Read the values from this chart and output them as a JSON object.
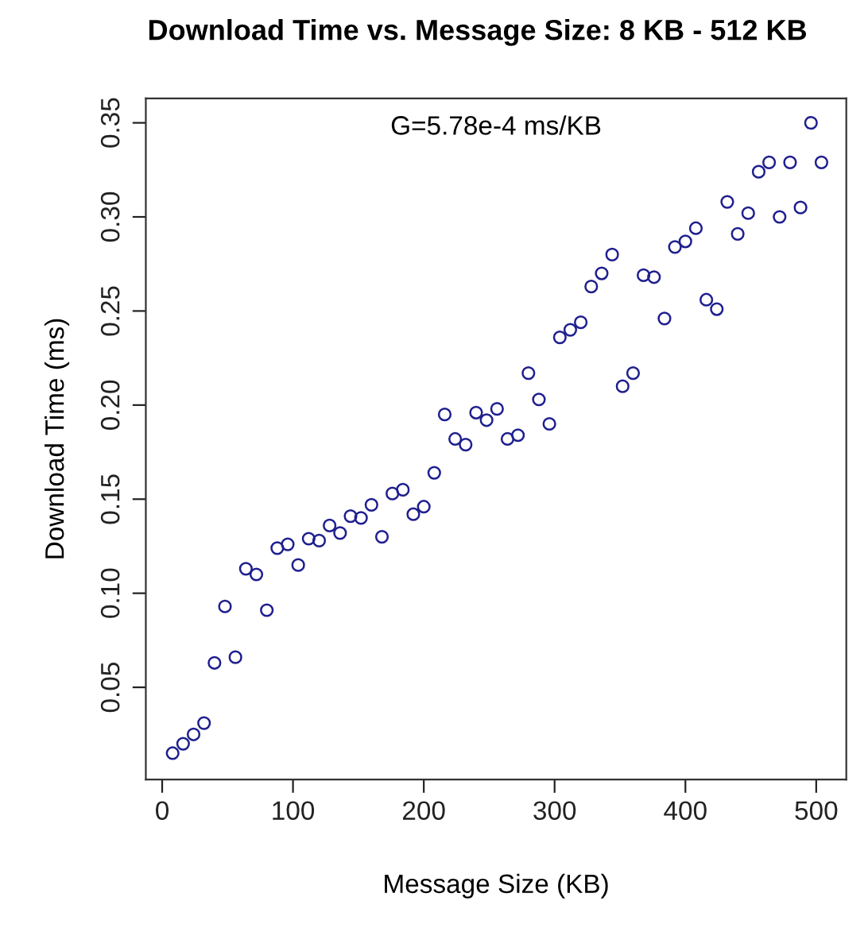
{
  "chart_data": {
    "type": "scatter",
    "title": "Download Time vs. Message Size: 8 KB - 512 KB",
    "xlabel": "Message Size (KB)",
    "ylabel": "Download Time (ms)",
    "annotations": [
      "G=5.78e-4 ms/KB"
    ],
    "marker": "circle",
    "grid": false,
    "xlim": [
      -12.5,
      523
    ],
    "ylim": [
      0.001,
      0.363
    ],
    "xticks": [
      0,
      100,
      200,
      300,
      400,
      500
    ],
    "yticks": [
      0.05,
      {
        "value": 0.1,
        "label": "0.10"
      },
      0.15,
      {
        "value": 0.2,
        "label": "0.20"
      },
      0.25,
      {
        "value": 0.3,
        "label": "0.30"
      },
      0.35
    ],
    "series": [
      {
        "color": "#1f1f8f",
        "x": [
          8,
          16,
          24,
          32,
          40,
          48,
          56,
          64,
          72,
          80,
          88,
          96,
          104,
          112,
          120,
          128,
          136,
          144,
          152,
          160,
          168,
          176,
          184,
          192,
          200,
          208,
          216,
          224,
          232,
          240,
          248,
          256,
          264,
          272,
          280,
          288,
          296,
          304,
          312,
          320,
          328,
          336,
          344,
          352,
          360,
          368,
          376,
          384,
          392,
          400,
          408,
          416,
          424,
          432,
          440,
          448,
          456,
          464,
          472,
          480,
          488,
          496,
          504
        ],
        "values": [
          0.015,
          0.02,
          0.025,
          0.031,
          0.063,
          0.093,
          0.066,
          0.113,
          0.11,
          0.091,
          0.124,
          0.126,
          0.115,
          0.129,
          0.128,
          0.136,
          0.132,
          0.141,
          0.14,
          0.147,
          0.13,
          0.153,
          0.155,
          0.142,
          0.146,
          0.164,
          0.195,
          0.182,
          0.179,
          0.196,
          0.192,
          0.198,
          0.182,
          0.184,
          0.217,
          0.203,
          0.19,
          0.236,
          0.24,
          0.244,
          0.263,
          0.27,
          0.28,
          0.21,
          0.217,
          0.269,
          0.268,
          0.246,
          0.284,
          0.287,
          0.294,
          0.256,
          0.251,
          0.308,
          0.291,
          0.302,
          0.324,
          0.329,
          0.3,
          0.329,
          0.305,
          0.35,
          0.329
        ]
      }
    ]
  }
}
